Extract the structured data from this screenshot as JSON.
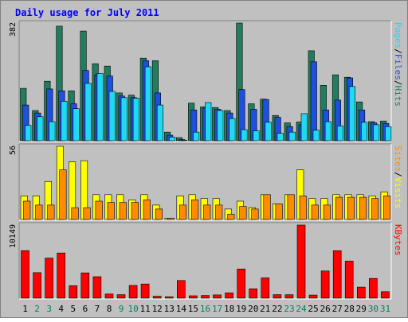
{
  "chart_data": {
    "type": "bar",
    "title": "Daily usage for July 2011",
    "categories": [
      "1",
      "2",
      "3",
      "4",
      "5",
      "6",
      "7",
      "8",
      "9",
      "10",
      "11",
      "12",
      "13",
      "14",
      "15",
      "16",
      "17",
      "18",
      "19",
      "20",
      "21",
      "22",
      "23",
      "24",
      "25",
      "26",
      "27",
      "28",
      "29",
      "30",
      "31"
    ],
    "weekend_days": [
      "2",
      "3",
      "9",
      "10",
      "16",
      "17",
      "23",
      "24",
      "30",
      "31"
    ],
    "panels": [
      {
        "id": "hits-panel",
        "max_label": "382",
        "max": 382,
        "series": [
          {
            "name": "Hits",
            "color": "#1e7e5e",
            "values": [
              170,
              98,
              193,
              372,
              162,
              356,
              250,
              242,
              155,
              148,
              268,
              260,
              28,
              10,
              122,
              110,
              108,
              98,
              382,
              120,
              135,
              82,
              58,
              61,
              292,
              180,
              214,
              206,
              126,
              62,
              64
            ]
          },
          {
            "name": "Files",
            "color": "#1d4fe0",
            "values": [
              116,
              90,
              168,
              162,
              120,
              228,
              214,
              210,
              145,
              140,
              260,
              155,
              18,
              4,
              100,
              106,
              102,
              90,
              166,
              102,
              134,
              76,
              46,
              52,
              256,
              100,
              132,
              204,
              100,
              58,
              56
            ]
          },
          {
            "name": "Pages",
            "color": "#22d8f0",
            "values": [
              50,
              78,
              62,
              128,
              104,
              186,
              218,
              160,
              140,
              138,
              240,
              116,
              12,
              2,
              28,
              124,
              98,
              72,
              36,
              32,
              60,
              24,
              28,
              88,
              34,
              62,
              48,
              176,
              60,
              52,
              46
            ]
          }
        ],
        "legend": [
          {
            "text": "Pages",
            "color": "#22d8f0"
          },
          {
            "text": "/",
            "color": "#000000"
          },
          {
            "text": "Files",
            "color": "#1d4fe0"
          },
          {
            "text": "/",
            "color": "#000000"
          },
          {
            "text": "Hits",
            "color": "#1e7e5e"
          }
        ]
      },
      {
        "id": "visits-panel",
        "max_label": "56",
        "max": 56,
        "series": [
          {
            "name": "Visits",
            "color": "#ffff00",
            "values": [
              18,
              18,
              29,
              56,
              44,
              45,
              19,
              19,
              19,
              15,
              19,
              11,
              1,
              18,
              19,
              16,
              16,
              8,
              14,
              9,
              19,
              12,
              19,
              38,
              16,
              16,
              19,
              19,
              19,
              18,
              21
            ]
          },
          {
            "name": "Sites",
            "color": "#ff8c00",
            "values": [
              14,
              11,
              11,
              38,
              9,
              9,
              14,
              13,
              13,
              13,
              15,
              8,
              1,
              11,
              15,
              11,
              11,
              4,
              10,
              8,
              19,
              12,
              19,
              18,
              11,
              11,
              17,
              17,
              17,
              16,
              18
            ]
          }
        ],
        "legend": [
          {
            "text": "Sites",
            "color": "#ff8c00"
          },
          {
            "text": "/",
            "color": "#000000"
          },
          {
            "text": "Visits",
            "color": "#ffff00"
          }
        ]
      },
      {
        "id": "kbytes-panel",
        "max_label": "10149",
        "max": 10149,
        "series": [
          {
            "name": "KBytes",
            "color": "#ff0000",
            "values": [
              6600,
              3540,
              5560,
              6270,
              1720,
              3510,
              2980,
              570,
              480,
              1760,
              1960,
              260,
              200,
              2450,
              330,
              370,
              450,
              730,
              4050,
              1300,
              2810,
              480,
              470,
              10149,
              430,
              3770,
              6590,
              5140,
              1530,
              2740,
              900
            ]
          }
        ],
        "legend": [
          {
            "text": "KBytes",
            "color": "#ff0000"
          }
        ]
      }
    ],
    "colors": {
      "background": "#c0c0c0",
      "plot": "#c0c0c0",
      "title": "#0000ff",
      "weekday_label": "#000000",
      "weekend_label": "#00805c"
    }
  }
}
